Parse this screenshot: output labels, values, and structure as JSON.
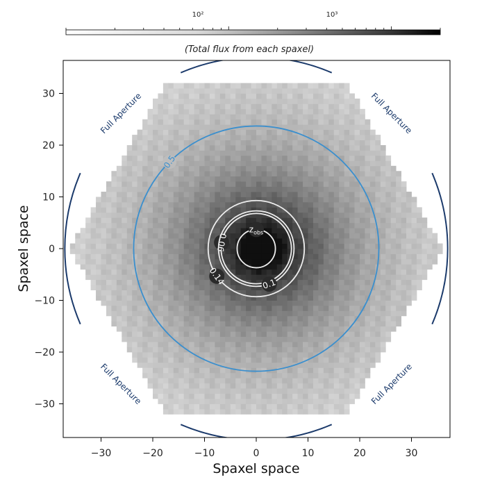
{
  "chart_data": {
    "type": "heatmap",
    "title": "",
    "xlabel": "Spaxel space",
    "ylabel": "Spaxel space",
    "xlim": [
      -37,
      37
    ],
    "ylim": [
      -37,
      37
    ],
    "xticks": [
      -30,
      -20,
      -10,
      0,
      10,
      20,
      30
    ],
    "yticks": [
      -30,
      -20,
      -10,
      0,
      10,
      20,
      30
    ],
    "xtick_labels": [
      "−30",
      "−20",
      "−10",
      "0",
      "10",
      "20",
      "30"
    ],
    "ytick_labels": [
      "−30",
      "−20",
      "−10",
      "0",
      "10",
      "20",
      "30"
    ],
    "grid": false,
    "colormap": "greys",
    "colorbar": {
      "position": "top",
      "scale": "log",
      "range": [
        10,
        2000
      ],
      "major_ticks": [
        100,
        1000
      ],
      "major_tick_labels": [
        "10²",
        "10³"
      ],
      "label": "(Total flux from each spaxel)"
    },
    "image": {
      "description": "Total flux from each spaxel, hexagonal IFU footprint",
      "hexagon_circumradius": 36,
      "peak_position": [
        1,
        0
      ]
    },
    "apertures": [
      {
        "label": "Full Aperture",
        "radius": 37,
        "color": "#1b3a6b"
      },
      {
        "label": "0.5",
        "radius": 23.7,
        "color": "#3a8fce"
      }
    ],
    "contours": [
      {
        "label": "z_obs",
        "label_main": "z",
        "label_sub": "obs",
        "radius": 3.7
      },
      {
        "label": "0.06",
        "radius": 6.8
      },
      {
        "label": "0.1",
        "radius": 7.3
      },
      {
        "label": "0.14",
        "radius": 9.3
      }
    ]
  }
}
